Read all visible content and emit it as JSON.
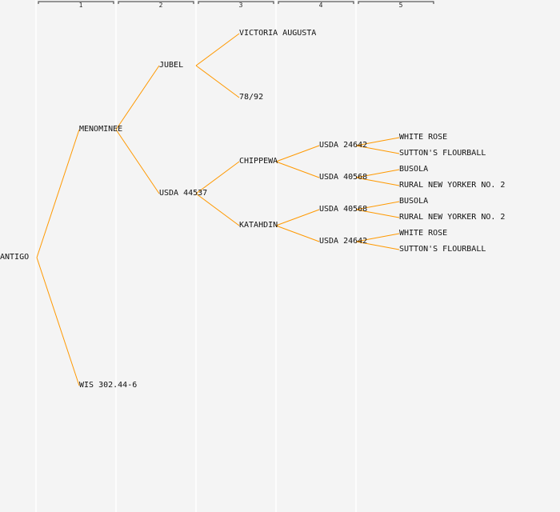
{
  "generation_labels": [
    "1",
    "2",
    "3",
    "4",
    "5"
  ],
  "colors": {
    "background": "#f4f4f4",
    "edge": "#ff9900",
    "column_line": "#ffffff",
    "bracket": "#333333",
    "text": "#111111"
  },
  "nodes": {
    "n_antigo": "ANTIGO",
    "n_menominee": "MENOMINEE",
    "n_wis": "WIS 302.44-6",
    "n_jubel": "JUBEL",
    "n_usda44537": "USDA 44537",
    "n_victoria": "VICTORIA AUGUSTA",
    "n_7892": "78/92",
    "n_chippewa": "CHIPPEWA",
    "n_katahdin": "KATAHDIN",
    "n_c_usda24642": "USDA 24642",
    "n_c_usda40568": "USDA 40568",
    "n_k_usda40568": "USDA 40568",
    "n_k_usda24642": "USDA 24642",
    "n_whiterose_1": "WHITE ROSE",
    "n_sutton_1": "SUTTON'S FLOURBALL",
    "n_busola_1": "BUSOLA",
    "n_rural_1": "RURAL NEW YORKER NO. 2",
    "n_busola_2": "BUSOLA",
    "n_rural_2": "RURAL NEW YORKER NO. 2",
    "n_whiterose_2": "WHITE ROSE",
    "n_sutton_2": "SUTTON'S FLOURBALL"
  },
  "edges": [
    [
      "n_antigo",
      "n_menominee"
    ],
    [
      "n_antigo",
      "n_wis"
    ],
    [
      "n_menominee",
      "n_jubel"
    ],
    [
      "n_menominee",
      "n_usda44537"
    ],
    [
      "n_jubel",
      "n_victoria"
    ],
    [
      "n_jubel",
      "n_7892"
    ],
    [
      "n_usda44537",
      "n_chippewa"
    ],
    [
      "n_usda44537",
      "n_katahdin"
    ],
    [
      "n_chippewa",
      "n_c_usda24642"
    ],
    [
      "n_chippewa",
      "n_c_usda40568"
    ],
    [
      "n_katahdin",
      "n_k_usda40568"
    ],
    [
      "n_katahdin",
      "n_k_usda24642"
    ],
    [
      "n_c_usda24642",
      "n_whiterose_1"
    ],
    [
      "n_c_usda24642",
      "n_sutton_1"
    ],
    [
      "n_c_usda40568",
      "n_busola_1"
    ],
    [
      "n_c_usda40568",
      "n_rural_1"
    ],
    [
      "n_k_usda40568",
      "n_busola_2"
    ],
    [
      "n_k_usda40568",
      "n_rural_2"
    ],
    [
      "n_k_usda24642",
      "n_whiterose_2"
    ],
    [
      "n_k_usda24642",
      "n_sutton_2"
    ]
  ]
}
